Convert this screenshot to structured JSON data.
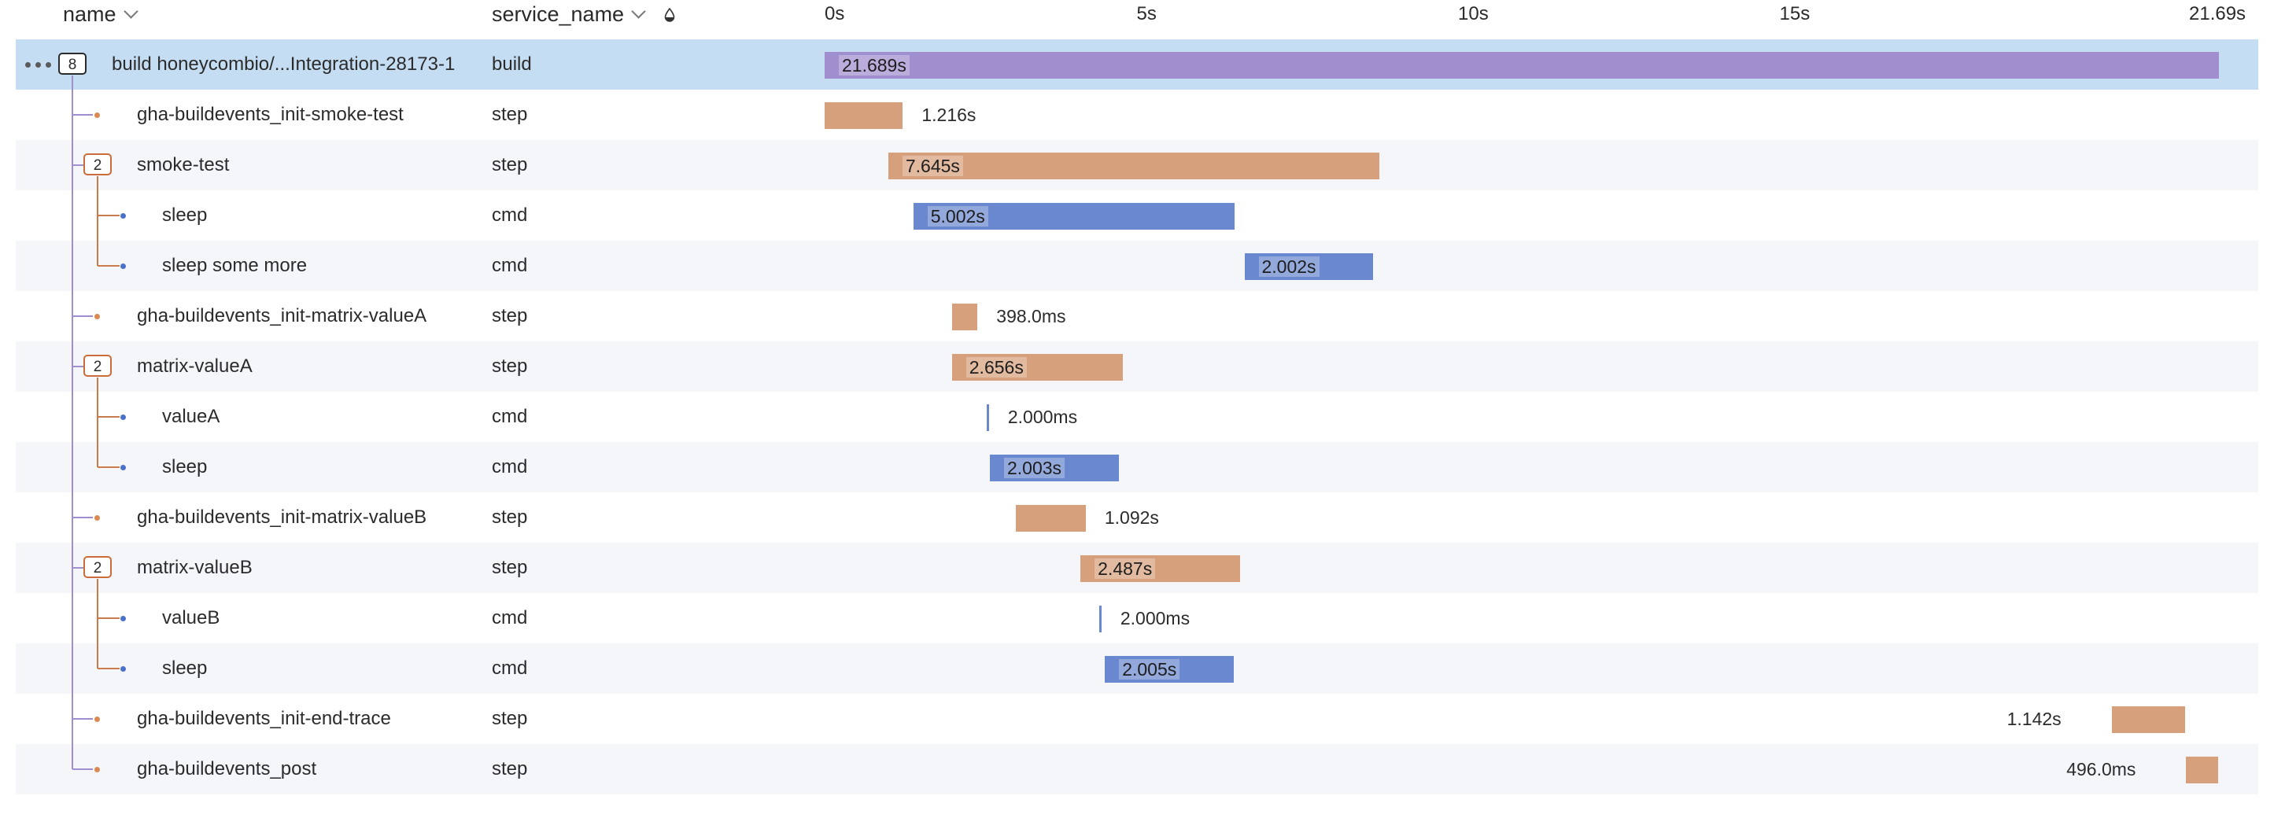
{
  "header": {
    "name_label": "name",
    "service_label": "service_name",
    "ticks": [
      "0s",
      "5s",
      "10s",
      "15s",
      "21.69s"
    ]
  },
  "colors": {
    "build": "#a08ecf",
    "step": "#d6a07c",
    "cmd": "#6a88cf",
    "selected_row": "#c4ddf2"
  },
  "trace": {
    "total_seconds": 21.689,
    "spans": [
      {
        "name": "build honeycombio/...Integration-28173-1",
        "service": "build",
        "kind": "build",
        "badge": "8",
        "level": 0,
        "start": 0.0,
        "duration": 21.689,
        "label": "21.689s",
        "label_inside": true
      },
      {
        "name": "gha-buildevents_init-smoke-test",
        "service": "step",
        "kind": "step",
        "badge": null,
        "level": 1,
        "start": 0.0,
        "duration": 1.216,
        "label": "1.216s",
        "label_inside": false
      },
      {
        "name": "smoke-test",
        "service": "step",
        "kind": "step",
        "badge": "2",
        "level": 1,
        "start": 0.99,
        "duration": 7.645,
        "label": "7.645s",
        "label_inside": true
      },
      {
        "name": "sleep",
        "service": "cmd",
        "kind": "cmd",
        "badge": null,
        "level": 2,
        "start": 1.38,
        "duration": 5.002,
        "label": "5.002s",
        "label_inside": true
      },
      {
        "name": "sleep some more",
        "service": "cmd",
        "kind": "cmd",
        "badge": null,
        "level": 2,
        "start": 6.53,
        "duration": 2.002,
        "label": "2.002s",
        "label_inside": true
      },
      {
        "name": "gha-buildevents_init-matrix-valueA",
        "service": "step",
        "kind": "step",
        "badge": null,
        "level": 1,
        "start": 1.98,
        "duration": 0.398,
        "label": "398.0ms",
        "label_inside": false
      },
      {
        "name": "matrix-valueA",
        "service": "step",
        "kind": "step",
        "badge": "2",
        "level": 1,
        "start": 1.98,
        "duration": 2.656,
        "label": "2.656s",
        "label_inside": true
      },
      {
        "name": "valueA",
        "service": "cmd",
        "kind": "cmd",
        "badge": null,
        "level": 2,
        "start": 2.52,
        "duration": 0.002,
        "label": "2.000ms",
        "label_inside": false
      },
      {
        "name": "sleep",
        "service": "cmd",
        "kind": "cmd",
        "badge": null,
        "level": 2,
        "start": 2.57,
        "duration": 2.003,
        "label": "2.003s",
        "label_inside": true
      },
      {
        "name": "gha-buildevents_init-matrix-valueB",
        "service": "step",
        "kind": "step",
        "badge": null,
        "level": 1,
        "start": 2.97,
        "duration": 1.092,
        "label": "1.092s",
        "label_inside": false
      },
      {
        "name": "matrix-valueB",
        "service": "step",
        "kind": "step",
        "badge": "2",
        "level": 1,
        "start": 3.98,
        "duration": 2.487,
        "label": "2.487s",
        "label_inside": true
      },
      {
        "name": "valueB",
        "service": "cmd",
        "kind": "cmd",
        "badge": null,
        "level": 2,
        "start": 4.27,
        "duration": 0.002,
        "label": "2.000ms",
        "label_inside": false
      },
      {
        "name": "sleep",
        "service": "cmd",
        "kind": "cmd",
        "badge": null,
        "level": 2,
        "start": 4.36,
        "duration": 2.005,
        "label": "2.005s",
        "label_inside": true
      },
      {
        "name": "gha-buildevents_init-end-trace",
        "service": "step",
        "kind": "step",
        "badge": null,
        "level": 1,
        "start": 20.02,
        "duration": 1.142,
        "label": "1.142s",
        "label_inside": false,
        "label_left": true
      },
      {
        "name": "gha-buildevents_post",
        "service": "step",
        "kind": "step",
        "badge": null,
        "level": 1,
        "start": 21.18,
        "duration": 0.496,
        "label": "496.0ms",
        "label_inside": false,
        "label_left": true
      }
    ]
  }
}
